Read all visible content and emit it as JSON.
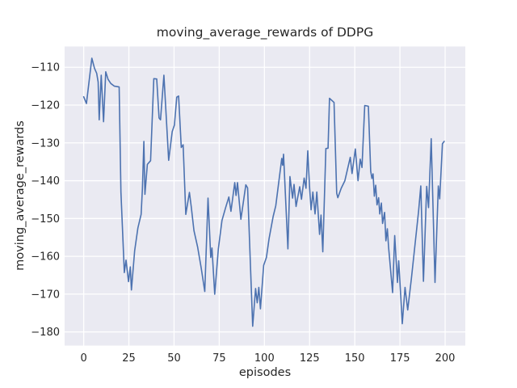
{
  "chart_data": {
    "type": "line",
    "title": "moving_average_rewards of DDPG",
    "xlabel": "episodes",
    "ylabel": "moving_average_rewards",
    "x_ticks": [
      0,
      25,
      50,
      75,
      100,
      125,
      150,
      175,
      200
    ],
    "x_tick_labels": [
      "0",
      "25",
      "50",
      "75",
      "100",
      "125",
      "150",
      "175",
      "200"
    ],
    "y_ticks": [
      -110,
      -120,
      -130,
      -140,
      -150,
      -160,
      -170,
      -180
    ],
    "y_tick_labels": [
      "−110",
      "−120",
      "−130",
      "−140",
      "−150",
      "−160",
      "−170",
      "−180"
    ],
    "xlim": [
      -10.55,
      211.15
    ],
    "ylim": [
      -183.6,
      -104.5
    ],
    "grid": true,
    "legend": "none",
    "panel_color": "#EAEAF2",
    "grid_color": "#FFFFFF",
    "line_color": "#4C72B0",
    "text_color": "#262626",
    "series": [
      {
        "name": "moving_average_rewards",
        "points": [
          [
            0,
            -117.8
          ],
          [
            1.5,
            -119.6
          ],
          [
            4.5,
            -107.6
          ],
          [
            6,
            -110.3
          ],
          [
            7.2,
            -111.6
          ],
          [
            8,
            -113.9
          ],
          [
            8.6,
            -123.9
          ],
          [
            9.7,
            -112.1
          ],
          [
            11,
            -124.4
          ],
          [
            12.2,
            -111.2
          ],
          [
            13.5,
            -113.2
          ],
          [
            15,
            -114.3
          ],
          [
            17,
            -115
          ],
          [
            19.6,
            -115.2
          ],
          [
            20.6,
            -143
          ],
          [
            22.5,
            -164.3
          ],
          [
            23.4,
            -161
          ],
          [
            24.8,
            -166.7
          ],
          [
            25.8,
            -162.8
          ],
          [
            26.4,
            -168.9
          ],
          [
            28.2,
            -158.5
          ],
          [
            30,
            -152.5
          ],
          [
            31.8,
            -148.9
          ],
          [
            32.5,
            -142.1
          ],
          [
            33.3,
            -129.6
          ],
          [
            33.9,
            -143.6
          ],
          [
            35.2,
            -135.7
          ],
          [
            37,
            -134.7
          ],
          [
            38.8,
            -113
          ],
          [
            40.4,
            -113.1
          ],
          [
            41.7,
            -123.4
          ],
          [
            42.5,
            -123.9
          ],
          [
            44.4,
            -112.1
          ],
          [
            47,
            -134.6
          ],
          [
            49,
            -127
          ],
          [
            50.2,
            -125.3
          ],
          [
            51.5,
            -117.9
          ],
          [
            52.5,
            -117.6
          ],
          [
            54,
            -131.2
          ],
          [
            55,
            -130.5
          ],
          [
            56.5,
            -148.9
          ],
          [
            58.5,
            -143.1
          ],
          [
            59.5,
            -146.8
          ],
          [
            61,
            -153.2
          ],
          [
            63,
            -157.5
          ],
          [
            65,
            -163
          ],
          [
            67,
            -169.3
          ],
          [
            68.8,
            -144.6
          ],
          [
            70.3,
            -160.3
          ],
          [
            71,
            -157.8
          ],
          [
            72.5,
            -170
          ],
          [
            74.5,
            -158
          ],
          [
            76.5,
            -150.5
          ],
          [
            78.5,
            -147.2
          ],
          [
            80.3,
            -144.3
          ],
          [
            81.5,
            -148.1
          ],
          [
            83.6,
            -140.5
          ],
          [
            84.3,
            -143.9
          ],
          [
            85.1,
            -140.5
          ],
          [
            87,
            -150.2
          ],
          [
            89.7,
            -141.1
          ],
          [
            90.7,
            -141.9
          ],
          [
            93.5,
            -178.5
          ],
          [
            95.1,
            -168.5
          ],
          [
            96,
            -172.3
          ],
          [
            96.9,
            -168.2
          ],
          [
            97.8,
            -173.9
          ],
          [
            99.6,
            -162.4
          ],
          [
            101.1,
            -160.3
          ],
          [
            102.6,
            -155.3
          ],
          [
            104.8,
            -149.5
          ],
          [
            106.3,
            -146.6
          ],
          [
            109.6,
            -134.1
          ],
          [
            110.1,
            -135.9
          ],
          [
            110.6,
            -133
          ],
          [
            113,
            -158
          ],
          [
            114.1,
            -138.9
          ],
          [
            115.6,
            -144.6
          ],
          [
            116.4,
            -141
          ],
          [
            117.5,
            -146.8
          ],
          [
            119.5,
            -141.6
          ],
          [
            120.5,
            -144.9
          ],
          [
            122,
            -139.3
          ],
          [
            123,
            -142
          ],
          [
            124,
            -132.1
          ],
          [
            125,
            -142
          ],
          [
            125.8,
            -147.7
          ],
          [
            126.8,
            -143
          ],
          [
            128,
            -148.8
          ],
          [
            129,
            -143
          ],
          [
            130.5,
            -154.2
          ],
          [
            131.3,
            -149.1
          ],
          [
            132.3,
            -158.8
          ],
          [
            134,
            -131.5
          ],
          [
            135.2,
            -131.4
          ],
          [
            136,
            -118.2
          ],
          [
            138.5,
            -119.3
          ],
          [
            140,
            -143.3
          ],
          [
            140.6,
            -144.5
          ],
          [
            142.5,
            -142
          ],
          [
            144.5,
            -140
          ],
          [
            147.5,
            -133.8
          ],
          [
            148.5,
            -138.1
          ],
          [
            150.3,
            -131.6
          ],
          [
            151.8,
            -140
          ],
          [
            153,
            -134.3
          ],
          [
            154,
            -136.5
          ],
          [
            155.5,
            -120.1
          ],
          [
            157.5,
            -120.3
          ],
          [
            158.8,
            -137.5
          ],
          [
            159.5,
            -139.4
          ],
          [
            160.1,
            -138.2
          ],
          [
            160.8,
            -144.1
          ],
          [
            161.6,
            -141.2
          ],
          [
            162.3,
            -146.4
          ],
          [
            163.2,
            -144.5
          ],
          [
            163.8,
            -148.8
          ],
          [
            164.7,
            -145.9
          ],
          [
            165.4,
            -151.3
          ],
          [
            166.5,
            -148.4
          ],
          [
            167.2,
            -155.9
          ],
          [
            168,
            -152.7
          ],
          [
            168.7,
            -157.5
          ],
          [
            170.9,
            -169.6
          ],
          [
            172.1,
            -154.5
          ],
          [
            173.6,
            -166.9
          ],
          [
            174.3,
            -161.2
          ],
          [
            176.3,
            -177.8
          ],
          [
            177.8,
            -168.2
          ],
          [
            179.3,
            -174.2
          ],
          [
            181.3,
            -166
          ],
          [
            183.3,
            -157
          ],
          [
            185.3,
            -148
          ],
          [
            186.5,
            -141.4
          ],
          [
            188,
            -166.6
          ],
          [
            189.8,
            -141.5
          ],
          [
            190.8,
            -147.1
          ],
          [
            192.3,
            -128.9
          ],
          [
            194.4,
            -166.9
          ],
          [
            196.2,
            -141.4
          ],
          [
            197,
            -144.8
          ],
          [
            198.5,
            -130.2
          ],
          [
            199.5,
            -129.6
          ]
        ]
      }
    ]
  }
}
